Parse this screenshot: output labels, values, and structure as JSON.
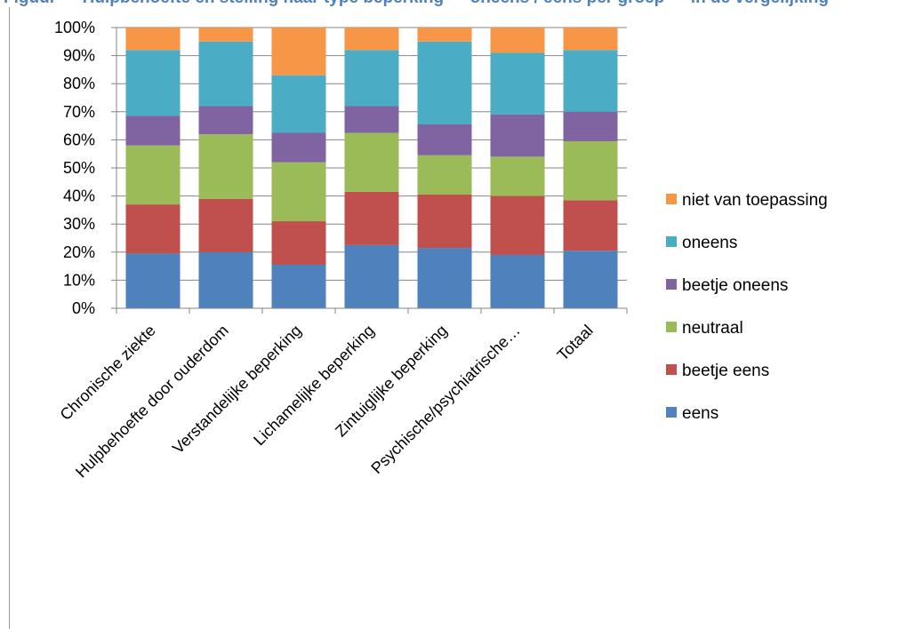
{
  "caption": {
    "text": "Figuur — Hulpbehoefte en stelling naar type beperking — oneens / eens per groep — in de vergelijking"
  },
  "chart_data": {
    "type": "bar",
    "stacked": true,
    "percent": true,
    "title": "",
    "xlabel": "",
    "ylabel": "",
    "ylim": [
      0,
      100
    ],
    "yticks": [
      "0%",
      "10%",
      "20%",
      "30%",
      "40%",
      "50%",
      "60%",
      "70%",
      "80%",
      "90%",
      "100%"
    ],
    "grid": true,
    "legend_position": "right",
    "categories": [
      "Chronische ziekte",
      "Hulpbehoefte door ouderdom",
      "Verstandelijke beperking",
      "Lichamelijke beperking",
      "Zintuiglijke beperking",
      "Psychische/psychiatrische…",
      "Totaal"
    ],
    "series": [
      {
        "name": "eens",
        "color": "#4f81bd",
        "values": [
          19.5,
          20,
          15.5,
          22.5,
          21.5,
          19,
          20.5
        ]
      },
      {
        "name": "beetje eens",
        "color": "#c0504d",
        "values": [
          17.5,
          19,
          15.5,
          19,
          19,
          21,
          18
        ]
      },
      {
        "name": "neutraal",
        "color": "#9bbb59",
        "values": [
          21,
          23,
          21,
          21,
          14,
          14,
          21
        ]
      },
      {
        "name": "beetje oneens",
        "color": "#8064a2",
        "values": [
          10.5,
          10,
          10.5,
          9.5,
          11,
          15,
          10.5
        ]
      },
      {
        "name": "oneens",
        "color": "#4bacc6",
        "values": [
          23.5,
          23,
          20.5,
          20,
          29.5,
          22,
          22
        ]
      },
      {
        "name": "niet van toepassing",
        "color": "#f79646",
        "values": [
          8,
          5,
          17,
          8,
          5,
          9,
          8
        ]
      }
    ]
  }
}
